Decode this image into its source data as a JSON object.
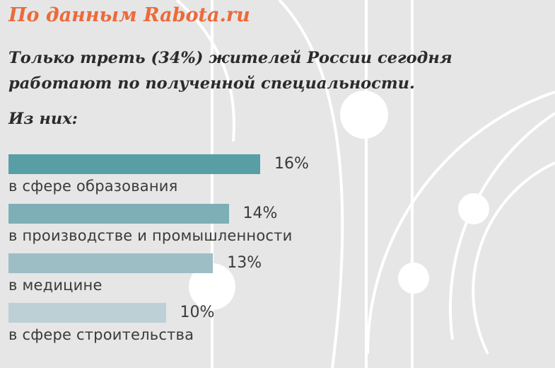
{
  "header": {
    "source": "По данным Rabota.ru",
    "headline": "Только треть (34%) жителей России сегодня работают по полученной специальности.",
    "subhead": "Из них:"
  },
  "chart_data": {
    "type": "bar",
    "orientation": "horizontal",
    "title": "Только треть (34%) жителей России сегодня работают по полученной специальности.",
    "categories": [
      "в сфере образования",
      "в производстве и промышленности",
      "в медицине",
      "в сфере строительства"
    ],
    "values": [
      16,
      14,
      13,
      10
    ],
    "value_labels": [
      "16%",
      "14%",
      "13%",
      "10%"
    ],
    "unit": "%",
    "colors": [
      "#5a9ea5",
      "#7eafb7",
      "#9dbec5",
      "#bcd0d5"
    ],
    "grid": false
  },
  "theme": {
    "background": "#e6e6e7",
    "accent": "#ec6a3a",
    "text": "#2b2b2b"
  }
}
